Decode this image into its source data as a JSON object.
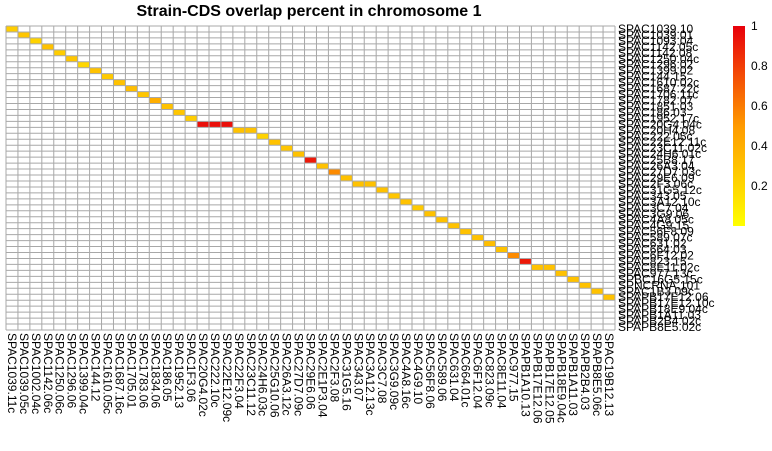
{
  "chart_data": {
    "type": "heatmap",
    "title": "Strain-CDS overlap percent in chromosome 1",
    "xlabel": "",
    "ylabel": "",
    "grid": true,
    "legend_position": "right",
    "color_scale": {
      "min": 0,
      "max": 1,
      "low_color": "#FFFF00",
      "high_color": "#E8000B",
      "ticks": [
        "0.2",
        "0.4",
        "0.6",
        "0.8",
        "1"
      ]
    },
    "y_labels": [
      "SPAC1039.10",
      "SPAC1039.01",
      "SPAC1093.04",
      "SPAC1142.05c",
      "SPAC1142.08",
      "SPAC1250.04c",
      "SPAC1296.02",
      "SPAC1399.02",
      "SPAC144.15",
      "SPAC1610.02c",
      "SPAC1687.22c",
      "SPAC1706.11c",
      "SPAC1782.07",
      "SPAC1851.03",
      "SPAC186.03",
      "SPAC1952.17c",
      "SPAC20G4.04c",
      "SPAC20H4.08",
      "SPAC222.05c",
      "SPAC22E12.11c",
      "SPAC23C11.02c",
      "SPAC24H6.01c",
      "SPAC25B8.17",
      "SPAC26A3.04",
      "SPAC27D7.03c",
      "SPAC29E6.09",
      "SPAC2F3.06c",
      "SPAC31G5.12c",
      "SPAC343.05",
      "SPAC3A12.10c",
      "SPAC3C7.04",
      "SPAC3G9.06",
      "SPAC4A8.05c",
      "SPAC4G9.15",
      "SPAC56F8.09",
      "SPAC589.07c",
      "SPAC631.02",
      "SPAC664.03",
      "SPAC6F12.02",
      "SPAC823.15",
      "SPAC8E11.02c",
      "SPAC977.13c",
      "SPBC16G5.15c",
      "SPNCRNA.101",
      "SPAC1B3.09c",
      "SPAPB17E12.06",
      "SPAPB17E12.10c",
      "SPAPB18E9.04c",
      "SPAPB1A11.03",
      "SPAPB2B4.02c",
      "SPAPB8E5.02c"
    ],
    "x_labels": [
      "SPAC1039.11c",
      "SPAC1039.05c",
      "SPAC1002.04c",
      "SPAC1142.06c",
      "SPAC1250.06c",
      "SPAC1296.06",
      "SPAC1399.04c",
      "SPAC144.12",
      "SPAC1610.05c",
      "SPAC1687.16c",
      "SPAC1705.01",
      "SPAC1783.06",
      "SPAC1834.06",
      "SPAC186.05",
      "SPAC1952.13",
      "SPAC1F3.06",
      "SPAC20G4.02c",
      "SPAC222.10c",
      "SPAC22E12.09c",
      "SPAC22F3.04",
      "SPAC23C11.12",
      "SPAC24H6.03c",
      "SPAC25G10.06",
      "SPAC26A3.12c",
      "SPAC27D7.09c",
      "SPAC29E6.06",
      "SPAC2E1P3.04",
      "SPAC2F3.08",
      "SPAC31G5.16",
      "SPAC343.07",
      "SPAC3A12.13c",
      "SPAC3C7.08",
      "SPAC3G9.09c",
      "SPAC4A8.16c",
      "SPAC4G9.10",
      "SPAC56F8.06",
      "SPAC589.06",
      "SPAC631.04",
      "SPAC664.01c",
      "SPAC6F12.04",
      "SPAC823.09c",
      "SPAC8E11.04",
      "SPAC977.15",
      "SPAPB1A10.13",
      "SPAPB17E12.06",
      "SPAPB17E12.05",
      "SPAPB18E9.04c",
      "SPAPB1A11.03",
      "SPAPB2B4.03",
      "SPAPB8E5.06c",
      "SPAC19B12.13"
    ],
    "n_cols": 51,
    "n_rows": 51,
    "cells": [
      {
        "col": 0,
        "row": 0,
        "value": 0.25
      },
      {
        "col": 1,
        "row": 1,
        "value": 0.28
      },
      {
        "col": 2,
        "row": 2,
        "value": 0.22
      },
      {
        "col": 3,
        "row": 3,
        "value": 0.3
      },
      {
        "col": 4,
        "row": 4,
        "value": 0.25
      },
      {
        "col": 5,
        "row": 5,
        "value": 0.28
      },
      {
        "col": 6,
        "row": 6,
        "value": 0.2
      },
      {
        "col": 7,
        "row": 7,
        "value": 0.3
      },
      {
        "col": 8,
        "row": 8,
        "value": 0.26
      },
      {
        "col": 9,
        "row": 9,
        "value": 0.3
      },
      {
        "col": 10,
        "row": 10,
        "value": 0.32
      },
      {
        "col": 11,
        "row": 11,
        "value": 0.28
      },
      {
        "col": 12,
        "row": 12,
        "value": 0.4
      },
      {
        "col": 13,
        "row": 13,
        "value": 0.3
      },
      {
        "col": 14,
        "row": 14,
        "value": 0.28
      },
      {
        "col": 15,
        "row": 15,
        "value": 0.25
      },
      {
        "col": 16,
        "row": 16,
        "value": 0.95
      },
      {
        "col": 17,
        "row": 16,
        "value": 0.95
      },
      {
        "col": 18,
        "row": 16,
        "value": 0.95
      },
      {
        "col": 19,
        "row": 17,
        "value": 0.3
      },
      {
        "col": 20,
        "row": 17,
        "value": 0.3
      },
      {
        "col": 21,
        "row": 18,
        "value": 0.22
      },
      {
        "col": 22,
        "row": 19,
        "value": 0.3
      },
      {
        "col": 23,
        "row": 20,
        "value": 0.28
      },
      {
        "col": 24,
        "row": 21,
        "value": 0.3
      },
      {
        "col": 25,
        "row": 22,
        "value": 0.92
      },
      {
        "col": 26,
        "row": 23,
        "value": 0.3
      },
      {
        "col": 27,
        "row": 24,
        "value": 0.55
      },
      {
        "col": 28,
        "row": 25,
        "value": 0.3
      },
      {
        "col": 29,
        "row": 26,
        "value": 0.3
      },
      {
        "col": 30,
        "row": 26,
        "value": 0.3
      },
      {
        "col": 31,
        "row": 27,
        "value": 0.3
      },
      {
        "col": 32,
        "row": 28,
        "value": 0.28
      },
      {
        "col": 33,
        "row": 29,
        "value": 0.3
      },
      {
        "col": 34,
        "row": 30,
        "value": 0.26
      },
      {
        "col": 35,
        "row": 31,
        "value": 0.3
      },
      {
        "col": 36,
        "row": 32,
        "value": 0.3
      },
      {
        "col": 37,
        "row": 33,
        "value": 0.3
      },
      {
        "col": 38,
        "row": 34,
        "value": 0.3
      },
      {
        "col": 39,
        "row": 35,
        "value": 0.3
      },
      {
        "col": 40,
        "row": 36,
        "value": 0.32
      },
      {
        "col": 41,
        "row": 37,
        "value": 0.3
      },
      {
        "col": 42,
        "row": 38,
        "value": 0.55
      },
      {
        "col": 43,
        "row": 39,
        "value": 0.92
      },
      {
        "col": 44,
        "row": 40,
        "value": 0.3
      },
      {
        "col": 45,
        "row": 40,
        "value": 0.3
      },
      {
        "col": 46,
        "row": 41,
        "value": 0.3
      },
      {
        "col": 47,
        "row": 42,
        "value": 0.3
      },
      {
        "col": 48,
        "row": 43,
        "value": 0.3
      },
      {
        "col": 49,
        "row": 44,
        "value": 0.3
      },
      {
        "col": 50,
        "row": 45,
        "value": 0.3
      }
    ]
  }
}
